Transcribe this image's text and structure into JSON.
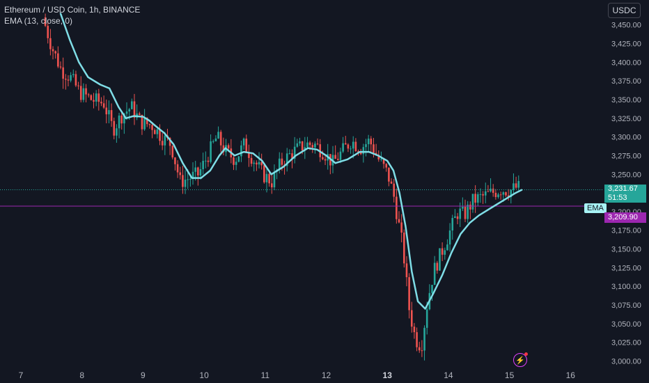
{
  "legend": {
    "symbol": "Ethereum / USD Coin, 1h, BINANCE",
    "indicator": "EMA (13, close, 0)"
  },
  "currency_button": "USDC",
  "price_tags": {
    "last_price": "3,231.67",
    "countdown": "51:53",
    "ema_label": "EMA",
    "ema_value": "3,209.90"
  },
  "colors": {
    "background": "#131722",
    "up": "#26a69a",
    "down": "#ef5350",
    "ema_line": "#7fdde6",
    "purple_line": "#9c27b0",
    "axis_text": "#b2b5be"
  },
  "icons": [
    "lightning-alert-icon"
  ],
  "chart_data": {
    "type": "candlestick",
    "y_ticks": [
      "3,450.00",
      "3,425.00",
      "3,400.00",
      "3,375.00",
      "3,350.00",
      "3,325.00",
      "3,300.00",
      "3,275.00",
      "3,250.00",
      "3,225.00",
      "3,200.00",
      "3,175.00",
      "3,150.00",
      "3,125.00",
      "3,100.00",
      "3,075.00",
      "3,050.00",
      "3,025.00",
      "3,000.00"
    ],
    "x_ticks": [
      "7",
      "8",
      "9",
      "10",
      "11",
      "12",
      "13",
      "14",
      "15",
      "16"
    ],
    "x_ticks_bold": [
      "13"
    ],
    "ylim": [
      2995,
      3465
    ],
    "xlim_days": [
      6.97,
      16.05
    ],
    "last_price": 3231.67,
    "ema_value": 3209.9,
    "approx_close_path": [
      [
        7.4,
        3460
      ],
      [
        7.55,
        3420
      ],
      [
        7.7,
        3390
      ],
      [
        7.85,
        3380
      ],
      [
        8.0,
        3360
      ],
      [
        8.2,
        3350
      ],
      [
        8.4,
        3345
      ],
      [
        8.55,
        3310
      ],
      [
        8.7,
        3330
      ],
      [
        8.85,
        3340
      ],
      [
        9.0,
        3320
      ],
      [
        9.2,
        3315
      ],
      [
        9.35,
        3300
      ],
      [
        9.5,
        3290
      ],
      [
        9.65,
        3240
      ],
      [
        9.8,
        3245
      ],
      [
        9.95,
        3250
      ],
      [
        10.1,
        3275
      ],
      [
        10.25,
        3300
      ],
      [
        10.4,
        3280
      ],
      [
        10.55,
        3270
      ],
      [
        10.7,
        3290
      ],
      [
        10.85,
        3270
      ],
      [
        11.0,
        3250
      ],
      [
        11.15,
        3240
      ],
      [
        11.3,
        3265
      ],
      [
        11.5,
        3280
      ],
      [
        11.7,
        3290
      ],
      [
        11.85,
        3290
      ],
      [
        12.0,
        3280
      ],
      [
        12.15,
        3265
      ],
      [
        12.3,
        3280
      ],
      [
        12.45,
        3295
      ],
      [
        12.6,
        3285
      ],
      [
        12.75,
        3295
      ],
      [
        12.9,
        3270
      ],
      [
        13.05,
        3250
      ],
      [
        13.15,
        3220
      ],
      [
        13.3,
        3150
      ],
      [
        13.4,
        3070
      ],
      [
        13.5,
        3030
      ],
      [
        13.6,
        3020
      ],
      [
        13.7,
        3080
      ],
      [
        13.8,
        3120
      ],
      [
        13.95,
        3150
      ],
      [
        14.1,
        3180
      ],
      [
        14.2,
        3200
      ],
      [
        14.3,
        3195
      ],
      [
        14.45,
        3215
      ],
      [
        14.6,
        3220
      ],
      [
        14.75,
        3225
      ],
      [
        14.9,
        3230
      ],
      [
        15.05,
        3228
      ],
      [
        15.15,
        3232
      ]
    ],
    "ema_path": [
      [
        7.65,
        3465
      ],
      [
        7.8,
        3430
      ],
      [
        7.95,
        3400
      ],
      [
        8.1,
        3380
      ],
      [
        8.3,
        3370
      ],
      [
        8.45,
        3365
      ],
      [
        8.6,
        3340
      ],
      [
        8.72,
        3325
      ],
      [
        8.85,
        3328
      ],
      [
        9.0,
        3327
      ],
      [
        9.1,
        3322
      ],
      [
        9.2,
        3315
      ],
      [
        9.35,
        3305
      ],
      [
        9.5,
        3290
      ],
      [
        9.65,
        3265
      ],
      [
        9.8,
        3245
      ],
      [
        9.95,
        3245
      ],
      [
        10.1,
        3255
      ],
      [
        10.25,
        3275
      ],
      [
        10.35,
        3285
      ],
      [
        10.5,
        3275
      ],
      [
        10.65,
        3280
      ],
      [
        10.8,
        3278
      ],
      [
        10.95,
        3268
      ],
      [
        11.1,
        3250
      ],
      [
        11.3,
        3260
      ],
      [
        11.5,
        3275
      ],
      [
        11.7,
        3285
      ],
      [
        11.85,
        3283
      ],
      [
        12.0,
        3275
      ],
      [
        12.15,
        3265
      ],
      [
        12.35,
        3270
      ],
      [
        12.55,
        3280
      ],
      [
        12.7,
        3280
      ],
      [
        12.85,
        3275
      ],
      [
        13.0,
        3268
      ],
      [
        13.1,
        3255
      ],
      [
        13.2,
        3225
      ],
      [
        13.3,
        3180
      ],
      [
        13.4,
        3120
      ],
      [
        13.5,
        3080
      ],
      [
        13.62,
        3070
      ],
      [
        13.75,
        3090
      ],
      [
        13.9,
        3115
      ],
      [
        14.05,
        3145
      ],
      [
        14.2,
        3170
      ],
      [
        14.35,
        3185
      ],
      [
        14.5,
        3195
      ],
      [
        14.7,
        3205
      ],
      [
        14.9,
        3215
      ],
      [
        15.1,
        3225
      ],
      [
        15.2,
        3229
      ]
    ]
  }
}
